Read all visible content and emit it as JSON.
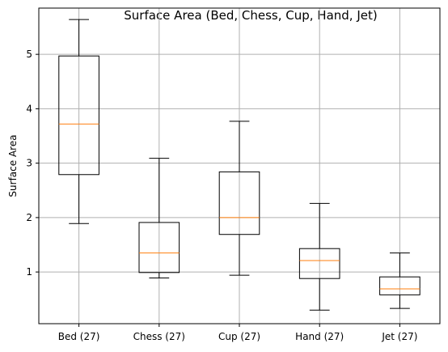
{
  "chart_data": {
    "type": "box",
    "title": "Surface Area (Bed, Chess, Cup, Hand, Jet)",
    "xlabel": "",
    "ylabel": "Surface Area",
    "ylim": [
      0.05,
      5.85
    ],
    "yticks": [
      1,
      2,
      3,
      4,
      5
    ],
    "grid": true,
    "categories": [
      "Bed (27)",
      "Chess (27)",
      "Cup (27)",
      "Hand (27)",
      "Jet (27)"
    ],
    "boxes": [
      {
        "whisker_low": 1.89,
        "q1": 2.79,
        "median": 3.72,
        "q3": 4.97,
        "whisker_high": 5.64
      },
      {
        "whisker_low": 0.89,
        "q1": 0.99,
        "median": 1.35,
        "q3": 1.91,
        "whisker_high": 3.09
      },
      {
        "whisker_low": 0.94,
        "q1": 1.69,
        "median": 2.0,
        "q3": 2.84,
        "whisker_high": 3.77
      },
      {
        "whisker_low": 0.3,
        "q1": 0.88,
        "median": 1.21,
        "q3": 1.43,
        "whisker_high": 2.26
      },
      {
        "whisker_low": 0.33,
        "q1": 0.58,
        "median": 0.69,
        "q3": 0.91,
        "whisker_high": 1.35
      }
    ],
    "colors": {
      "box": "#000000",
      "median": "#ff7f0e",
      "grid": "#b0b0b0"
    }
  }
}
